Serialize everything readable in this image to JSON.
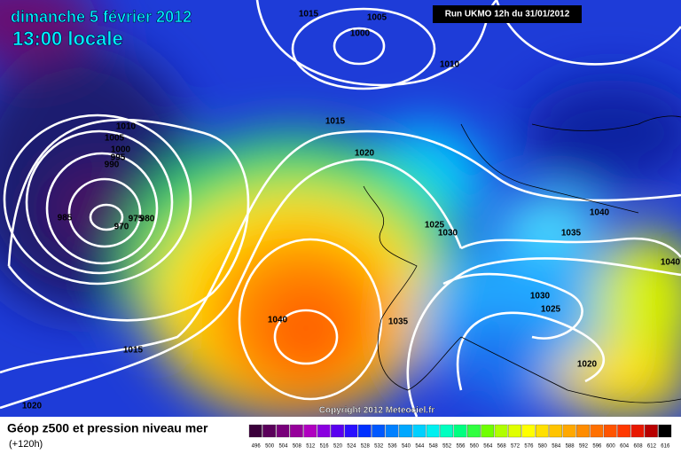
{
  "header": {
    "date": "dimanche 5 février 2012",
    "time": "13:00 locale"
  },
  "run_info": "Run UKMO 12h du 31/01/2012",
  "copyright": "Copyright 2012 Meteociel.fr",
  "legend": {
    "title": "Géop z500 et pression niveau mer",
    "subtitle": "(+120h)",
    "scale": [
      {
        "label": "496",
        "color": "#3a003a"
      },
      {
        "label": "500",
        "color": "#5a005a"
      },
      {
        "label": "504",
        "color": "#78007a"
      },
      {
        "label": "508",
        "color": "#96009a"
      },
      {
        "label": "512",
        "color": "#b000c0"
      },
      {
        "label": "516",
        "color": "#8a00e0"
      },
      {
        "label": "520",
        "color": "#5a00f0"
      },
      {
        "label": "524",
        "color": "#2a10ff"
      },
      {
        "label": "528",
        "color": "#0030ff"
      },
      {
        "label": "532",
        "color": "#0058ff"
      },
      {
        "label": "536",
        "color": "#0080ff"
      },
      {
        "label": "540",
        "color": "#00a8ff"
      },
      {
        "label": "544",
        "color": "#00d0ff"
      },
      {
        "label": "548",
        "color": "#00f0f0"
      },
      {
        "label": "552",
        "color": "#00ffc0"
      },
      {
        "label": "556",
        "color": "#00ff80"
      },
      {
        "label": "560",
        "color": "#30ff40"
      },
      {
        "label": "564",
        "color": "#70ff00"
      },
      {
        "label": "568",
        "color": "#b0ff00"
      },
      {
        "label": "572",
        "color": "#e0ff00"
      },
      {
        "label": "576",
        "color": "#ffff00"
      },
      {
        "label": "580",
        "color": "#ffe000"
      },
      {
        "label": "584",
        "color": "#ffc400"
      },
      {
        "label": "588",
        "color": "#ffa800"
      },
      {
        "label": "592",
        "color": "#ff8c00"
      },
      {
        "label": "596",
        "color": "#ff7000"
      },
      {
        "label": "600",
        "color": "#ff5400"
      },
      {
        "label": "604",
        "color": "#ff3800"
      },
      {
        "label": "608",
        "color": "#e81800"
      },
      {
        "label": "612",
        "color": "#b80000"
      },
      {
        "label": "616",
        "color": "#000000"
      }
    ]
  },
  "isobar_labels": [
    "1015",
    "1005",
    "1000",
    "1010",
    "1010",
    "1005",
    "1000",
    "995",
    "990",
    "985",
    "970",
    "975",
    "980",
    "1015",
    "1020",
    "1025",
    "1030",
    "1040",
    "1035",
    "1040",
    "1030",
    "1025",
    "1040",
    "1035",
    "1020",
    "1015",
    "1020"
  ]
}
